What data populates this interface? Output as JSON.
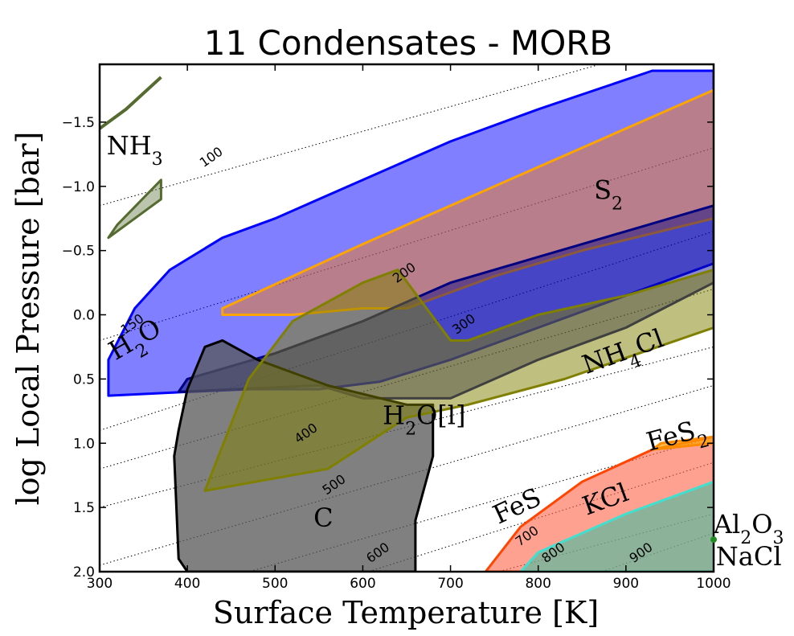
{
  "chart_data": {
    "type": "area",
    "title": "11 Condensates - MORB",
    "xlabel": "Surface Temperature [K]",
    "ylabel": "log Local Pressure [bar]",
    "xlim": [
      300,
      1000
    ],
    "ylim": [
      -1.95,
      2.0
    ],
    "y_inverted": true,
    "x_ticks": [
      "300",
      "400",
      "500",
      "600",
      "700",
      "800",
      "900",
      "1000"
    ],
    "x_tick_values": [
      300,
      400,
      500,
      600,
      700,
      800,
      900,
      1000
    ],
    "y_ticks": [
      "−1.5",
      "−1.0",
      "−0.5",
      "0.0",
      "0.5",
      "1.0",
      "1.5",
      "2.0"
    ],
    "y_tick_values": [
      -1.5,
      -1.0,
      -0.5,
      0.0,
      0.5,
      1.0,
      1.5,
      2.0
    ],
    "grid": false,
    "isotherms": [
      {
        "label": "100",
        "points": [
          [
            300,
            -0.85
          ],
          [
            1000,
            -2.2
          ]
        ],
        "label_at": [
          430,
          -1.2
        ]
      },
      {
        "label": "150",
        "points": [
          [
            300,
            0.2
          ],
          [
            1000,
            -1.3
          ]
        ],
        "label_at": [
          340,
          0.1
        ]
      },
      {
        "label": "200",
        "points": [
          [
            300,
            0.9
          ],
          [
            1000,
            -0.65
          ]
        ],
        "label_at": [
          650,
          -0.3
        ]
      },
      {
        "label": "300",
        "points": [
          [
            300,
            1.2
          ],
          [
            1000,
            -0.2
          ]
        ],
        "label_at": [
          718,
          0.1
        ]
      },
      {
        "label": "400",
        "points": [
          [
            300,
            1.5
          ],
          [
            1000,
            0.25
          ]
        ],
        "label_at": [
          538,
          0.95
        ]
      },
      {
        "label": "500",
        "points": [
          [
            300,
            1.95
          ],
          [
            1000,
            0.55
          ]
        ],
        "label_at": [
          570,
          1.35
        ]
      },
      {
        "label": "600",
        "points": [
          [
            420,
            2.1
          ],
          [
            1000,
            0.95
          ]
        ],
        "label_at": [
          620,
          1.88
        ]
      },
      {
        "label": "700",
        "points": [
          [
            560,
            2.1
          ],
          [
            1000,
            1.15
          ]
        ],
        "label_at": [
          790,
          1.75
        ]
      },
      {
        "label": "800",
        "points": [
          [
            700,
            2.1
          ],
          [
            1000,
            1.55
          ]
        ],
        "label_at": [
          820,
          1.88
        ]
      },
      {
        "label": "900",
        "points": [
          [
            830,
            2.1
          ],
          [
            1000,
            1.7
          ]
        ],
        "label_at": [
          920,
          1.88
        ]
      }
    ],
    "series": [
      {
        "name": "H2O",
        "color": "#0000ff",
        "fill": "#0000ff",
        "opacity": 0.5,
        "polygon": [
          [
            310,
            0.63
          ],
          [
            400,
            0.6
          ],
          [
            470,
            0.58
          ],
          [
            550,
            0.58
          ],
          [
            620,
            0.52
          ],
          [
            700,
            0.35
          ],
          [
            800,
            0.1
          ],
          [
            900,
            -0.15
          ],
          [
            1000,
            -0.4
          ],
          [
            1000,
            -1.9
          ],
          [
            930,
            -1.9
          ],
          [
            800,
            -1.6
          ],
          [
            700,
            -1.35
          ],
          [
            600,
            -1.05
          ],
          [
            500,
            -0.75
          ],
          [
            440,
            -0.6
          ],
          [
            380,
            -0.35
          ],
          [
            340,
            -0.05
          ],
          [
            310,
            0.35
          ]
        ]
      },
      {
        "name": "S2",
        "color": "#ffa500",
        "fill": "#ff7f00",
        "opacity": 0.45,
        "polygon": [
          [
            440,
            0.0
          ],
          [
            520,
            0.0
          ],
          [
            600,
            -0.05
          ],
          [
            650,
            -0.05
          ],
          [
            750,
            -0.3
          ],
          [
            850,
            -0.5
          ],
          [
            1000,
            -0.75
          ],
          [
            1000,
            -1.75
          ],
          [
            900,
            -1.45
          ],
          [
            800,
            -1.15
          ],
          [
            700,
            -0.85
          ],
          [
            600,
            -0.55
          ],
          [
            520,
            -0.3
          ],
          [
            440,
            -0.05
          ]
        ]
      },
      {
        "name": "H2O[l]",
        "color": "#000080",
        "fill": "#000080",
        "opacity": 0.45,
        "polygon": [
          [
            390,
            0.6
          ],
          [
            550,
            0.55
          ],
          [
            600,
            0.65
          ],
          [
            700,
            0.65
          ],
          [
            800,
            0.35
          ],
          [
            900,
            0.1
          ],
          [
            1000,
            -0.25
          ],
          [
            1000,
            -0.85
          ],
          [
            900,
            -0.65
          ],
          [
            800,
            -0.45
          ],
          [
            700,
            -0.25
          ],
          [
            600,
            0.05
          ],
          [
            500,
            0.3
          ],
          [
            400,
            0.5
          ]
        ]
      },
      {
        "name": "C",
        "color": "#000000",
        "fill": "#555555",
        "opacity": 0.75,
        "polygon": [
          [
            400,
            2.0
          ],
          [
            660,
            2.0
          ],
          [
            660,
            1.6
          ],
          [
            680,
            1.1
          ],
          [
            680,
            0.7
          ],
          [
            650,
            0.7
          ],
          [
            560,
            0.55
          ],
          [
            480,
            0.35
          ],
          [
            440,
            0.2
          ],
          [
            420,
            0.25
          ],
          [
            400,
            0.58
          ],
          [
            390,
            0.9
          ],
          [
            385,
            1.1
          ],
          [
            390,
            1.9
          ]
        ]
      },
      {
        "name": "NH4Cl",
        "color": "#808000",
        "fill": "#808000",
        "opacity": 0.5,
        "polygon": [
          [
            420,
            1.37
          ],
          [
            560,
            1.2
          ],
          [
            650,
            0.8
          ],
          [
            720,
            0.7
          ],
          [
            830,
            0.5
          ],
          [
            1000,
            0.1
          ],
          [
            1000,
            -0.35
          ],
          [
            900,
            -0.15
          ],
          [
            800,
            0.0
          ],
          [
            720,
            0.2
          ],
          [
            700,
            0.2
          ],
          [
            640,
            -0.35
          ],
          [
            600,
            -0.25
          ],
          [
            520,
            0.05
          ],
          [
            470,
            0.5
          ]
        ]
      },
      {
        "name": "FeS",
        "color": "#ff4500",
        "fill": "#ff6347",
        "opacity": 0.6,
        "polygon": [
          [
            740,
            2.0
          ],
          [
            1000,
            2.0
          ],
          [
            1000,
            0.95
          ],
          [
            930,
            1.05
          ],
          [
            850,
            1.3
          ],
          [
            780,
            1.65
          ]
        ]
      },
      {
        "name": "FeS2",
        "color": "#ff8c00",
        "fill": "#ffa500",
        "opacity": 0.7,
        "polygon": [
          [
            930,
            1.05
          ],
          [
            1000,
            1.0
          ],
          [
            1000,
            0.95
          ],
          [
            940,
            1.0
          ]
        ]
      },
      {
        "name": "KCl",
        "color": "#40e0d0",
        "fill": "#40c0a0",
        "opacity": 0.6,
        "polygon": [
          [
            780,
            2.0
          ],
          [
            1000,
            2.0
          ],
          [
            1000,
            1.3
          ],
          [
            900,
            1.55
          ],
          [
            800,
            1.85
          ]
        ]
      },
      {
        "name": "NH3",
        "color": "#556b2f",
        "fill": "#556b2f",
        "opacity": 0.4,
        "polygon": [
          [
            310,
            -0.6
          ],
          [
            370,
            -0.9
          ],
          [
            370,
            -1.05
          ],
          [
            320,
            -0.7
          ]
        ]
      }
    ],
    "annotations": [
      {
        "text": "NH3",
        "at": [
          340,
          -1.25
        ]
      },
      {
        "text": "S2",
        "at": [
          880,
          -0.9
        ]
      },
      {
        "text": "H2O",
        "at": [
          345,
          0.25
        ],
        "rotate": -30
      },
      {
        "text": "NH4Cl",
        "at": [
          900,
          0.35
        ],
        "rotate": -20
      },
      {
        "text": "H2O[l]",
        "at": [
          670,
          0.85
        ]
      },
      {
        "text": "FeS2",
        "at": [
          960,
          1.0
        ],
        "rotate": -15
      },
      {
        "text": "FeS",
        "at": [
          780,
          1.55
        ],
        "rotate": -25
      },
      {
        "text": "KCl",
        "at": [
          880,
          1.5
        ],
        "rotate": -20
      },
      {
        "text": "C",
        "at": [
          555,
          1.65
        ]
      },
      {
        "text": "Al2O3",
        "at": [
          1040,
          1.7
        ]
      },
      {
        "text": "NaCl",
        "at": [
          1040,
          1.95
        ]
      }
    ]
  },
  "title": "11 Condensates - MORB",
  "xlabel": "Surface Temperature [K]",
  "ylabel": "log Local Pressure [bar]"
}
